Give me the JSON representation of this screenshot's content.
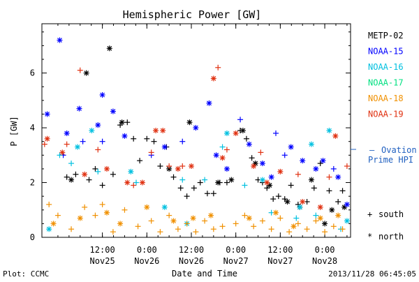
{
  "chart_data": {
    "type": "scatter",
    "title": "Hemispheric Power [GW]",
    "xlabel": "Date and Time",
    "ylabel": "P [GW]",
    "ylim": [
      0,
      7.8
    ],
    "xlim": [
      -0.18,
      3.29
    ],
    "x_unit": "days from 2013-11-25 00:00",
    "yticks": [
      0,
      2,
      4,
      6
    ],
    "xticks": [
      {
        "x": 0.5,
        "time": "12:00",
        "date": "Nov25"
      },
      {
        "x": 1.0,
        "time": "0:00",
        "date": "Nov26"
      },
      {
        "x": 1.5,
        "time": "12:00",
        "date": "Nov26"
      },
      {
        "x": 2.0,
        "time": "0:00",
        "date": "Nov27"
      },
      {
        "x": 2.5,
        "time": "12:00",
        "date": "Nov27"
      },
      {
        "x": 3.0,
        "time": "0:00",
        "date": "Nov28"
      }
    ],
    "series": [
      {
        "name": "METP-02",
        "color": "#000000",
        "south": [
          [
            0.1,
            2.2
          ],
          [
            0.2,
            2.3
          ],
          [
            0.35,
            2.1
          ],
          [
            0.42,
            2.5
          ],
          [
            0.5,
            1.9
          ],
          [
            0.62,
            2.3
          ],
          [
            0.7,
            4.1
          ],
          [
            0.78,
            4.2
          ],
          [
            0.85,
            3.6
          ],
          [
            0.92,
            2.8
          ],
          [
            1.0,
            3.6
          ],
          [
            1.08,
            3.5
          ],
          [
            1.15,
            2.6
          ],
          [
            1.22,
            3.3
          ],
          [
            1.3,
            2.2
          ],
          [
            1.38,
            1.8
          ],
          [
            1.45,
            1.5
          ],
          [
            1.53,
            1.8
          ],
          [
            1.6,
            2.0
          ],
          [
            1.68,
            1.6
          ],
          [
            1.75,
            1.6
          ],
          [
            1.82,
            2.0
          ],
          [
            1.9,
            2.0
          ],
          [
            2.05,
            3.9
          ],
          [
            2.12,
            3.6
          ],
          [
            2.18,
            2.9
          ],
          [
            2.25,
            2.1
          ],
          [
            2.3,
            2.0
          ],
          [
            2.35,
            1.8
          ],
          [
            2.42,
            1.4
          ],
          [
            2.48,
            1.5
          ],
          [
            2.55,
            1.4
          ],
          [
            2.62,
            1.9
          ],
          [
            2.7,
            1.2
          ],
          [
            2.8,
            1.3
          ],
          [
            2.88,
            1.8
          ],
          [
            2.95,
            2.7
          ],
          [
            3.05,
            1.7
          ],
          [
            3.15,
            1.3
          ],
          [
            3.2,
            1.7
          ]
        ],
        "north": [
          [
            0.15,
            2.1
          ],
          [
            0.32,
            6.0
          ],
          [
            0.58,
            6.9
          ],
          [
            0.72,
            4.2
          ],
          [
            1.25,
            2.5
          ],
          [
            1.48,
            4.2
          ],
          [
            1.8,
            2.0
          ],
          [
            1.95,
            2.1
          ],
          [
            2.08,
            3.9
          ],
          [
            2.22,
            2.7
          ],
          [
            2.38,
            1.9
          ],
          [
            2.58,
            1.3
          ],
          [
            2.72,
            1.1
          ],
          [
            2.85,
            2.1
          ],
          [
            3.0,
            0.5
          ],
          [
            3.08,
            1.0
          ],
          [
            3.22,
            1.1
          ]
        ]
      },
      {
        "name": "NOAA-15",
        "color": "#0000ff",
        "south": [
          [
            0.06,
            3.0
          ],
          [
            0.28,
            3.5
          ],
          [
            0.5,
            3.5
          ],
          [
            1.05,
            3.0
          ],
          [
            1.4,
            3.5
          ],
          [
            2.05,
            4.3
          ],
          [
            2.45,
            3.8
          ],
          [
            2.55,
            3.0
          ],
          [
            3.1,
            2.5
          ]
        ],
        "north": [
          [
            -0.12,
            4.5
          ],
          [
            0.02,
            7.2
          ],
          [
            0.1,
            3.8
          ],
          [
            0.24,
            4.7
          ],
          [
            0.45,
            4.1
          ],
          [
            0.5,
            5.2
          ],
          [
            0.62,
            4.6
          ],
          [
            0.75,
            3.7
          ],
          [
            1.2,
            3.3
          ],
          [
            1.55,
            4.0
          ],
          [
            1.7,
            4.9
          ],
          [
            1.78,
            3.0
          ],
          [
            1.9,
            2.5
          ],
          [
            2.15,
            3.4
          ],
          [
            2.3,
            2.7
          ],
          [
            2.4,
            2.2
          ],
          [
            2.62,
            3.3
          ],
          [
            2.75,
            2.8
          ],
          [
            2.9,
            2.5
          ],
          [
            2.98,
            2.8
          ],
          [
            3.15,
            2.2
          ],
          [
            3.25,
            1.2
          ]
        ]
      },
      {
        "name": "NOAA-16",
        "color": "#00c0e0",
        "south": [
          [
            0.02,
            3.0
          ],
          [
            0.15,
            2.7
          ],
          [
            0.45,
            2.4
          ],
          [
            0.88,
            2.0
          ],
          [
            1.4,
            2.1
          ],
          [
            1.65,
            2.1
          ],
          [
            1.85,
            3.3
          ],
          [
            2.1,
            1.9
          ],
          [
            2.4,
            0.9
          ],
          [
            2.68,
            0.7
          ],
          [
            2.9,
            0.8
          ],
          [
            3.18,
            0.3
          ]
        ],
        "north": [
          [
            -0.1,
            0.3
          ],
          [
            0.22,
            3.3
          ],
          [
            0.38,
            3.9
          ],
          [
            0.82,
            2.4
          ],
          [
            1.2,
            1.1
          ],
          [
            1.45,
            0.5
          ],
          [
            1.9,
            3.8
          ],
          [
            2.3,
            2.1
          ],
          [
            2.72,
            1.1
          ],
          [
            2.85,
            3.4
          ],
          [
            3.05,
            3.9
          ],
          [
            3.25,
            0.6
          ]
        ]
      },
      {
        "name": "NOAA-18",
        "color": "#f09000",
        "south": [
          [
            -0.1,
            1.2
          ],
          [
            0.0,
            0.8
          ],
          [
            0.15,
            0.3
          ],
          [
            0.3,
            1.1
          ],
          [
            0.42,
            0.8
          ],
          [
            0.5,
            1.2
          ],
          [
            0.62,
            0.2
          ],
          [
            0.75,
            1.0
          ],
          [
            0.9,
            0.4
          ],
          [
            1.05,
            0.6
          ],
          [
            1.15,
            0.2
          ],
          [
            1.25,
            0.8
          ],
          [
            1.35,
            0.3
          ],
          [
            1.45,
            0.5
          ],
          [
            1.55,
            0.2
          ],
          [
            1.65,
            0.6
          ],
          [
            1.75,
            0.3
          ],
          [
            1.85,
            0.4
          ],
          [
            2.0,
            0.5
          ],
          [
            2.1,
            0.8
          ],
          [
            2.2,
            0.4
          ],
          [
            2.3,
            0.6
          ],
          [
            2.4,
            0.3
          ],
          [
            2.5,
            0.7
          ],
          [
            2.6,
            0.2
          ],
          [
            2.7,
            0.5
          ],
          [
            2.8,
            0.3
          ],
          [
            2.9,
            0.6
          ],
          [
            3.0,
            0.2
          ],
          [
            3.1,
            0.4
          ],
          [
            3.2,
            0.3
          ]
        ],
        "north": [
          [
            -0.05,
            0.5
          ],
          [
            0.25,
            0.7
          ],
          [
            0.55,
            0.9
          ],
          [
            0.7,
            0.5
          ],
          [
            1.0,
            1.1
          ],
          [
            1.3,
            0.6
          ],
          [
            1.52,
            0.7
          ],
          [
            1.72,
            0.8
          ],
          [
            2.15,
            0.7
          ],
          [
            2.45,
            0.9
          ],
          [
            2.65,
            0.4
          ],
          [
            2.95,
            0.7
          ],
          [
            3.15,
            0.8
          ]
        ]
      },
      {
        "name": "NOAA-19",
        "color": "#e03010",
        "south": [
          [
            -0.15,
            3.4
          ],
          [
            0.1,
            3.4
          ],
          [
            0.25,
            6.1
          ],
          [
            0.45,
            3.2
          ],
          [
            0.85,
            1.9
          ],
          [
            1.05,
            3.1
          ],
          [
            1.25,
            2.6
          ],
          [
            1.4,
            2.6
          ],
          [
            1.8,
            6.2
          ],
          [
            1.9,
            3.2
          ],
          [
            2.28,
            3.1
          ],
          [
            2.7,
            2.3
          ],
          [
            3.05,
            2.2
          ],
          [
            3.25,
            2.6
          ]
        ],
        "north": [
          [
            -0.12,
            3.6
          ],
          [
            0.05,
            3.1
          ],
          [
            0.3,
            2.3
          ],
          [
            0.55,
            2.5
          ],
          [
            0.78,
            2.0
          ],
          [
            0.95,
            2.0
          ],
          [
            1.1,
            3.9
          ],
          [
            1.18,
            3.9
          ],
          [
            1.35,
            2.5
          ],
          [
            1.5,
            2.6
          ],
          [
            1.75,
            5.8
          ],
          [
            1.85,
            2.9
          ],
          [
            2.0,
            3.8
          ],
          [
            2.2,
            2.6
          ],
          [
            2.35,
            2.0
          ],
          [
            2.5,
            2.4
          ],
          [
            2.75,
            1.3
          ],
          [
            2.95,
            1.1
          ],
          [
            3.12,
            3.7
          ]
        ]
      }
    ],
    "legend_only": [
      {
        "name": "NOAA-17",
        "color": "#00e080"
      }
    ],
    "legend_order": [
      "METP-02",
      "NOAA-15",
      "NOAA-16",
      "NOAA-17",
      "NOAA-18",
      "NOAA-19"
    ],
    "legend_position": "right",
    "ovation": {
      "marker": "—",
      "label_line1": "Ovation",
      "label_line2": "Prime HPI",
      "color": "#2060c0",
      "y_level": 3.2
    },
    "markers": {
      "south_label": "south",
      "north_label": "north",
      "south_symbol": "+",
      "north_symbol": "*"
    },
    "footer": {
      "left": "Plot: CCMC",
      "right": "2013/11/28 06:45:05"
    }
  }
}
